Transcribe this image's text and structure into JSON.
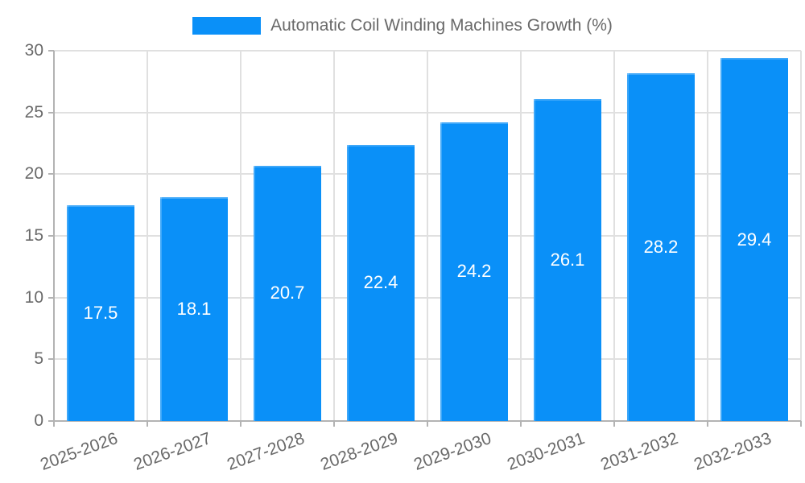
{
  "legend": {
    "label": "Automatic Coil Winding Machines Growth (%)",
    "position": "top"
  },
  "colors": {
    "bar": "#0a90f8",
    "grid": "#e0e0e0",
    "axis": "#b3b3b3",
    "tick_text": "#696969",
    "value_text": "#ffffff",
    "background": "#ffffff"
  },
  "chart_data": {
    "type": "bar",
    "categories": [
      "2025-2026",
      "2026-2027",
      "2027-2028",
      "2028-2029",
      "2029-2030",
      "2030-2031",
      "2031-2032",
      "2032-2033"
    ],
    "series": [
      {
        "name": "Automatic Coil Winding Machines Growth (%)",
        "values": [
          17.5,
          18.1,
          20.7,
          22.4,
          24.2,
          26.1,
          28.2,
          29.4
        ]
      }
    ],
    "value_labels": [
      "17.5",
      "18.1",
      "20.7",
      "22.4",
      "24.2",
      "26.1",
      "28.2",
      "29.4"
    ],
    "ylabel": "",
    "xlabel": "",
    "ylim": [
      0,
      30
    ],
    "yticks": [
      0,
      5,
      10,
      15,
      20,
      25,
      30
    ],
    "grid": true,
    "legend_position": "top",
    "x_label_rotation_deg": -20,
    "value_label_position": "inside-center"
  }
}
